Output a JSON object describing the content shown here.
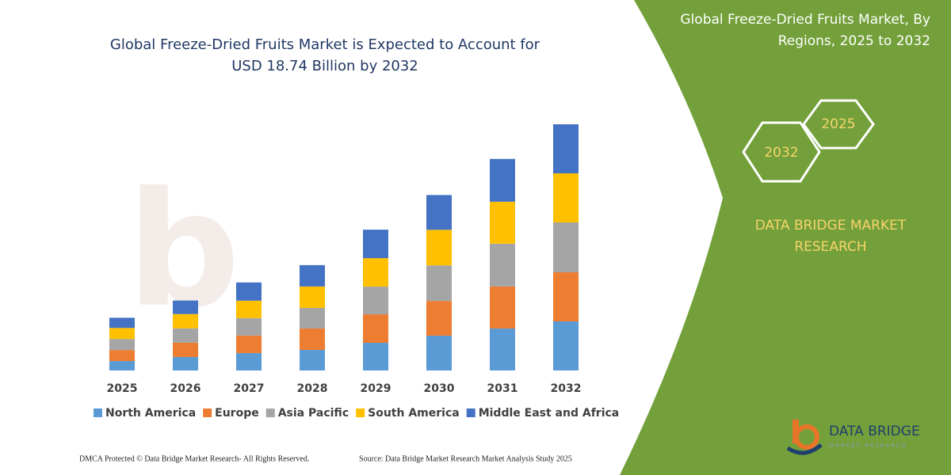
{
  "chart_data": {
    "type": "stacked-bar",
    "title": [
      "Global Freeze-Dried Fruits Market is Expected to Account for",
      "USD 18.74 Billion by 2032"
    ],
    "categories": [
      "2025",
      "2026",
      "2027",
      "2028",
      "2029",
      "2030",
      "2031",
      "2032"
    ],
    "series": [
      {
        "name": "North America",
        "color": "#5b9bd5",
        "values": [
          0.72,
          1.03,
          1.33,
          1.57,
          2.11,
          2.65,
          3.2,
          3.74
        ]
      },
      {
        "name": "Europe",
        "color": "#ed7d31",
        "values": [
          0.84,
          1.09,
          1.33,
          1.63,
          2.17,
          2.65,
          3.2,
          3.74
        ]
      },
      {
        "name": "Asia Pacific",
        "color": "#a5a5a5",
        "values": [
          0.84,
          1.09,
          1.33,
          1.57,
          2.11,
          2.71,
          3.26,
          3.8
        ]
      },
      {
        "name": "South America",
        "color": "#ffc000",
        "values": [
          0.84,
          1.09,
          1.33,
          1.63,
          2.17,
          2.71,
          3.2,
          3.74
        ]
      },
      {
        "name": "Middle East and Africa",
        "color": "#4472c4",
        "values": [
          0.78,
          1.03,
          1.39,
          1.63,
          2.17,
          2.65,
          3.26,
          3.74
        ]
      }
    ],
    "legend": "bottom"
  },
  "panel": {
    "title": [
      "Global Freeze-Dried Fruits Market, By",
      "Regions, 2025 to 2032"
    ],
    "hexagons": [
      "2032",
      "2025"
    ],
    "brand": [
      "DATA BRIDGE MARKET",
      "RESEARCH"
    ],
    "logo": "DATA BRIDGE",
    "logo_tagline": "MARKET RESEARCH"
  },
  "footer": {
    "left": "DMCA Protected © Data Bridge Market Research-  All Rights Reserved.",
    "right": "Source: Data Bridge Market Research  Market Analysis Study 2025"
  }
}
